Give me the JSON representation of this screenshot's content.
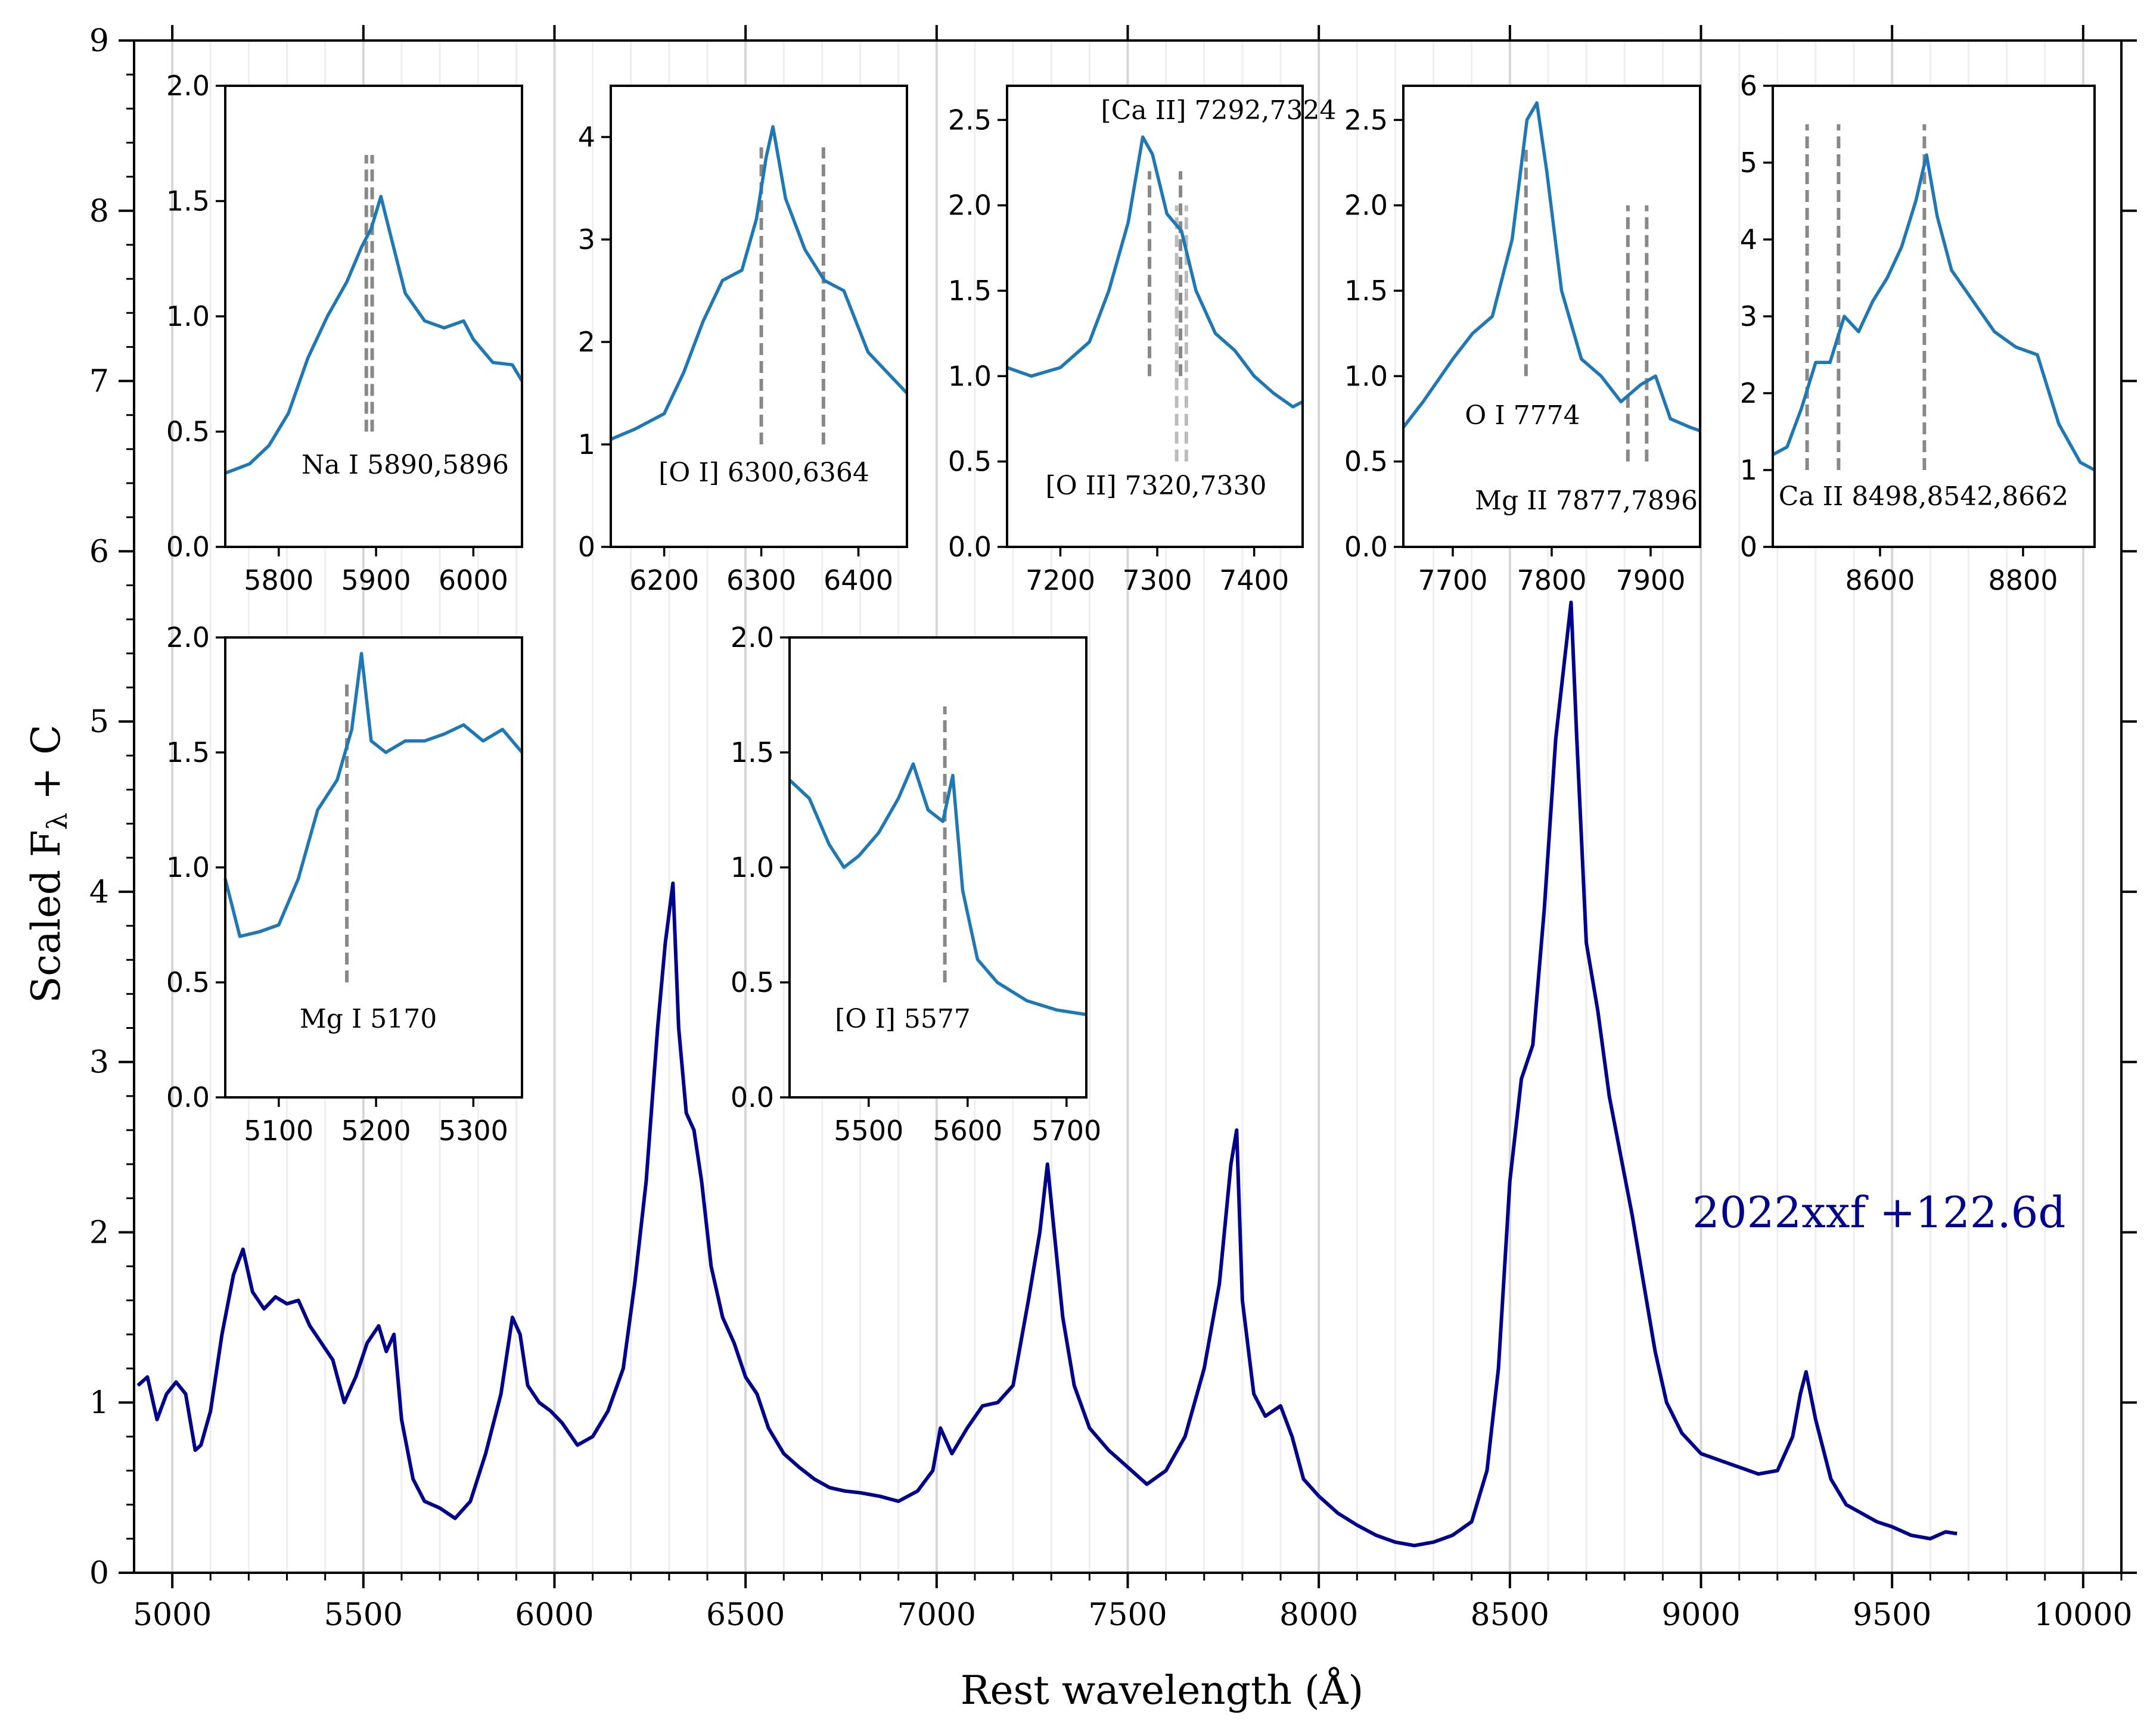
{
  "chart_data": [
    {
      "type": "line",
      "id": "main",
      "xlabel": "Rest wavelength (Å)",
      "ylabel_prefix": "Scaled F",
      "ylabel_sub": "λ",
      "ylabel_suffix": " + C",
      "xlim": [
        4900,
        10100
      ],
      "ylim": [
        0,
        9
      ],
      "xticks": [
        5000,
        5500,
        6000,
        6500,
        7000,
        7500,
        8000,
        8500,
        9000,
        9500,
        10000
      ],
      "yticks": [
        0,
        1,
        2,
        3,
        4,
        5,
        6,
        7,
        8,
        9
      ],
      "xtick_labels": [
        "5000",
        "5500",
        "6000",
        "6500",
        "7000",
        "7500",
        "8000",
        "8500",
        "9000",
        "9500",
        "10000"
      ],
      "ytick_labels": [
        "0",
        "1",
        "2",
        "3",
        "4",
        "5",
        "6",
        "7",
        "8",
        "9"
      ],
      "annotation": "2022xxf +122.6d",
      "series": [
        {
          "name": "2022xxf +122.6d",
          "color": "#00008b",
          "x": [
            4910,
            4935,
            4960,
            4985,
            5010,
            5035,
            5060,
            5075,
            5100,
            5130,
            5160,
            5185,
            5210,
            5240,
            5270,
            5300,
            5330,
            5360,
            5390,
            5420,
            5450,
            5480,
            5510,
            5540,
            5560,
            5580,
            5600,
            5630,
            5660,
            5700,
            5740,
            5780,
            5820,
            5860,
            5890,
            5910,
            5930,
            5960,
            5990,
            6020,
            6060,
            6100,
            6140,
            6180,
            6210,
            6240,
            6270,
            6290,
            6310,
            6325,
            6345,
            6365,
            6385,
            6410,
            6440,
            6470,
            6500,
            6530,
            6560,
            6600,
            6640,
            6680,
            6720,
            6760,
            6800,
            6850,
            6900,
            6950,
            6990,
            7010,
            7040,
            7080,
            7120,
            7160,
            7200,
            7240,
            7270,
            7290,
            7310,
            7330,
            7360,
            7400,
            7450,
            7500,
            7550,
            7600,
            7650,
            7700,
            7740,
            7770,
            7785,
            7800,
            7830,
            7860,
            7900,
            7930,
            7960,
            8000,
            8050,
            8100,
            8150,
            8200,
            8250,
            8300,
            8350,
            8400,
            8440,
            8470,
            8500,
            8530,
            8560,
            8590,
            8620,
            8645,
            8660,
            8675,
            8700,
            8730,
            8760,
            8790,
            8820,
            8850,
            8880,
            8910,
            8950,
            9000,
            9050,
            9100,
            9150,
            9200,
            9240,
            9260,
            9275,
            9300,
            9340,
            9380,
            9420,
            9460,
            9500,
            9550,
            9600,
            9640,
            9670
          ],
          "y": [
            1.1,
            1.15,
            0.9,
            1.05,
            1.12,
            1.05,
            0.72,
            0.75,
            0.95,
            1.4,
            1.75,
            1.9,
            1.65,
            1.55,
            1.62,
            1.58,
            1.6,
            1.45,
            1.35,
            1.25,
            1.0,
            1.15,
            1.35,
            1.45,
            1.3,
            1.4,
            0.9,
            0.55,
            0.42,
            0.38,
            0.32,
            0.42,
            0.7,
            1.05,
            1.5,
            1.4,
            1.1,
            1.0,
            0.95,
            0.88,
            0.75,
            0.8,
            0.95,
            1.2,
            1.7,
            2.3,
            3.2,
            3.7,
            4.05,
            3.2,
            2.7,
            2.6,
            2.3,
            1.8,
            1.5,
            1.35,
            1.15,
            1.05,
            0.85,
            0.7,
            0.62,
            0.55,
            0.5,
            0.48,
            0.47,
            0.45,
            0.42,
            0.48,
            0.6,
            0.85,
            0.7,
            0.85,
            0.98,
            1.0,
            1.1,
            1.6,
            2.0,
            2.4,
            1.95,
            1.5,
            1.1,
            0.85,
            0.72,
            0.62,
            0.52,
            0.6,
            0.8,
            1.2,
            1.7,
            2.4,
            2.6,
            1.6,
            1.05,
            0.92,
            0.98,
            0.8,
            0.55,
            0.45,
            0.35,
            0.28,
            0.22,
            0.18,
            0.16,
            0.18,
            0.22,
            0.3,
            0.6,
            1.2,
            2.3,
            2.9,
            3.1,
            3.9,
            4.9,
            5.4,
            5.7,
            4.9,
            3.7,
            3.3,
            2.8,
            2.45,
            2.1,
            1.7,
            1.3,
            1.0,
            0.82,
            0.7,
            0.66,
            0.62,
            0.58,
            0.6,
            0.8,
            1.05,
            1.18,
            0.9,
            0.55,
            0.4,
            0.35,
            0.3,
            0.27,
            0.22,
            0.2,
            0.24,
            0.23
          ]
        }
      ]
    },
    {
      "type": "line",
      "id": "inset-na",
      "xlim": [
        5745,
        6050
      ],
      "ylim": [
        0,
        2.0
      ],
      "xticks": [
        5800,
        5900,
        6000
      ],
      "xtick_labels": [
        "5800",
        "5900",
        "6000"
      ],
      "yticks": [
        0,
        0.5,
        1.0,
        1.5,
        2.0
      ],
      "ytick_labels": [
        "0.0",
        "0.5",
        "1.0",
        "1.5",
        "2.0"
      ],
      "label": "Na I 5890,5896",
      "lines": [
        {
          "x": 5890,
          "y0": 0.5,
          "y1": 1.7,
          "color": "#888888"
        },
        {
          "x": 5896,
          "y0": 0.5,
          "y1": 1.7,
          "color": "#888888"
        }
      ],
      "series": [
        {
          "name": "flux",
          "color": "#1f77b4",
          "x": [
            5745,
            5770,
            5790,
            5810,
            5830,
            5850,
            5870,
            5885,
            5895,
            5905,
            5915,
            5930,
            5950,
            5970,
            5990,
            6000,
            6020,
            6040,
            6050
          ],
          "y": [
            0.32,
            0.36,
            0.44,
            0.58,
            0.82,
            1.0,
            1.15,
            1.3,
            1.38,
            1.52,
            1.35,
            1.1,
            0.98,
            0.95,
            0.98,
            0.9,
            0.8,
            0.79,
            0.72
          ]
        }
      ]
    },
    {
      "type": "line",
      "id": "inset-oi-6300",
      "xlim": [
        6145,
        6450
      ],
      "ylim": [
        0,
        4.5
      ],
      "xticks": [
        6200,
        6300,
        6400
      ],
      "xtick_labels": [
        "6200",
        "6300",
        "6400"
      ],
      "yticks": [
        0,
        1,
        2,
        3,
        4
      ],
      "ytick_labels": [
        "0",
        "1",
        "2",
        "3",
        "4"
      ],
      "label": "[O I] 6300,6364",
      "lines": [
        {
          "x": 6300,
          "y0": 1.0,
          "y1": 3.9,
          "color": "#888888"
        },
        {
          "x": 6364,
          "y0": 1.0,
          "y1": 3.9,
          "color": "#888888"
        }
      ],
      "series": [
        {
          "name": "flux",
          "color": "#1f77b4",
          "x": [
            6145,
            6170,
            6200,
            6220,
            6240,
            6260,
            6280,
            6295,
            6305,
            6312,
            6325,
            6345,
            6365,
            6385,
            6410,
            6430,
            6450
          ],
          "y": [
            1.05,
            1.15,
            1.3,
            1.7,
            2.2,
            2.6,
            2.7,
            3.2,
            3.8,
            4.1,
            3.4,
            2.9,
            2.6,
            2.5,
            1.9,
            1.7,
            1.5
          ]
        }
      ]
    },
    {
      "type": "line",
      "id": "inset-caii",
      "xlim": [
        7145,
        7450
      ],
      "ylim": [
        0,
        2.7
      ],
      "xticks": [
        7200,
        7300,
        7400
      ],
      "xtick_labels": [
        "7200",
        "7300",
        "7400"
      ],
      "yticks": [
        0,
        0.5,
        1.0,
        1.5,
        2.0,
        2.5
      ],
      "ytick_labels": [
        "0.0",
        "0.5",
        "1.0",
        "1.5",
        "2.0",
        "2.5"
      ],
      "label": "[Ca II] 7292,7324",
      "label2": "[O II] 7320,7330",
      "lines": [
        {
          "x": 7292,
          "y0": 1.0,
          "y1": 2.2,
          "color": "#888888"
        },
        {
          "x": 7324,
          "y0": 1.0,
          "y1": 2.2,
          "color": "#888888"
        },
        {
          "x": 7320,
          "y0": 0.5,
          "y1": 2.0,
          "color": "#bbbbbb"
        },
        {
          "x": 7330,
          "y0": 0.5,
          "y1": 2.0,
          "color": "#bbbbbb"
        }
      ],
      "series": [
        {
          "name": "flux",
          "color": "#1f77b4",
          "x": [
            7145,
            7170,
            7200,
            7230,
            7250,
            7270,
            7285,
            7295,
            7310,
            7325,
            7340,
            7360,
            7380,
            7400,
            7420,
            7440,
            7450
          ],
          "y": [
            1.05,
            1.0,
            1.05,
            1.2,
            1.5,
            1.9,
            2.4,
            2.3,
            1.95,
            1.85,
            1.5,
            1.25,
            1.15,
            1.0,
            0.9,
            0.82,
            0.85
          ]
        }
      ]
    },
    {
      "type": "line",
      "id": "inset-oi-7774",
      "xlim": [
        7650,
        7950
      ],
      "ylim": [
        0,
        2.7
      ],
      "xticks": [
        7700,
        7800,
        7900
      ],
      "xtick_labels": [
        "7700",
        "7800",
        "7900"
      ],
      "yticks": [
        0,
        0.5,
        1.0,
        1.5,
        2.0,
        2.5
      ],
      "ytick_labels": [
        "0.0",
        "0.5",
        "1.0",
        "1.5",
        "2.0",
        "2.5"
      ],
      "label": "O I 7774",
      "label2": "Mg II 7877,7896",
      "lines": [
        {
          "x": 7774,
          "y0": 1.0,
          "y1": 2.35,
          "color": "#888888"
        },
        {
          "x": 7877,
          "y0": 0.5,
          "y1": 2.0,
          "color": "#888888"
        },
        {
          "x": 7896,
          "y0": 0.5,
          "y1": 2.0,
          "color": "#888888"
        }
      ],
      "series": [
        {
          "name": "flux",
          "color": "#1f77b4",
          "x": [
            7650,
            7670,
            7700,
            7720,
            7740,
            7760,
            7775,
            7785,
            7795,
            7810,
            7830,
            7850,
            7870,
            7890,
            7905,
            7920,
            7940,
            7950
          ],
          "y": [
            0.7,
            0.85,
            1.1,
            1.25,
            1.35,
            1.8,
            2.5,
            2.6,
            2.2,
            1.5,
            1.1,
            1.0,
            0.85,
            0.95,
            1.0,
            0.75,
            0.7,
            0.68
          ]
        }
      ]
    },
    {
      "type": "line",
      "id": "inset-caii-ir",
      "xlim": [
        8450,
        8900
      ],
      "ylim": [
        0,
        6
      ],
      "xticks": [
        8600,
        8800
      ],
      "xtick_labels": [
        "8600",
        "8800"
      ],
      "yticks": [
        0,
        1,
        2,
        3,
        4,
        5,
        6
      ],
      "ytick_labels": [
        "0",
        "1",
        "2",
        "3",
        "4",
        "5",
        "6"
      ],
      "label": "Ca II 8498,8542,8662",
      "lines": [
        {
          "x": 8498,
          "y0": 1.0,
          "y1": 5.5,
          "color": "#888888"
        },
        {
          "x": 8542,
          "y0": 1.0,
          "y1": 5.5,
          "color": "#888888"
        },
        {
          "x": 8662,
          "y0": 1.0,
          "y1": 5.5,
          "color": "#888888"
        }
      ],
      "series": [
        {
          "name": "flux",
          "color": "#1f77b4",
          "x": [
            8450,
            8470,
            8490,
            8510,
            8530,
            8550,
            8570,
            8590,
            8610,
            8630,
            8650,
            8665,
            8680,
            8700,
            8730,
            8760,
            8790,
            8820,
            8850,
            8880,
            8900
          ],
          "y": [
            1.2,
            1.3,
            1.8,
            2.4,
            2.4,
            3.0,
            2.8,
            3.2,
            3.5,
            3.9,
            4.5,
            5.1,
            4.3,
            3.6,
            3.2,
            2.8,
            2.6,
            2.5,
            1.6,
            1.1,
            1.0
          ]
        }
      ]
    },
    {
      "type": "line",
      "id": "inset-mgi",
      "xlim": [
        5045,
        5350
      ],
      "ylim": [
        0,
        2.0
      ],
      "xticks": [
        5100,
        5200,
        5300
      ],
      "xtick_labels": [
        "5100",
        "5200",
        "5300"
      ],
      "yticks": [
        0,
        0.5,
        1.0,
        1.5,
        2.0
      ],
      "ytick_labels": [
        "0.0",
        "0.5",
        "1.0",
        "1.5",
        "2.0"
      ],
      "label": "Mg I 5170",
      "lines": [
        {
          "x": 5170,
          "y0": 0.5,
          "y1": 1.8,
          "color": "#888888"
        }
      ],
      "series": [
        {
          "name": "flux",
          "color": "#1f77b4",
          "x": [
            5045,
            5060,
            5080,
            5100,
            5120,
            5140,
            5160,
            5175,
            5185,
            5195,
            5210,
            5230,
            5250,
            5270,
            5290,
            5310,
            5330,
            5350
          ],
          "y": [
            0.95,
            0.7,
            0.72,
            0.75,
            0.95,
            1.25,
            1.38,
            1.6,
            1.93,
            1.55,
            1.5,
            1.55,
            1.55,
            1.58,
            1.62,
            1.55,
            1.6,
            1.5
          ]
        }
      ]
    },
    {
      "type": "line",
      "id": "inset-oi-5577",
      "xlim": [
        5420,
        5720
      ],
      "ylim": [
        0,
        2.0
      ],
      "xticks": [
        5500,
        5600,
        5700
      ],
      "xtick_labels": [
        "5500",
        "5600",
        "5700"
      ],
      "yticks": [
        0,
        0.5,
        1.0,
        1.5,
        2.0
      ],
      "ytick_labels": [
        "0.0",
        "0.5",
        "1.0",
        "1.5",
        "2.0"
      ],
      "label": "[O I] 5577",
      "lines": [
        {
          "x": 5577,
          "y0": 0.5,
          "y1": 1.7,
          "color": "#888888"
        }
      ],
      "series": [
        {
          "name": "flux",
          "color": "#1f77b4",
          "x": [
            5420,
            5440,
            5460,
            5475,
            5490,
            5510,
            5530,
            5545,
            5560,
            5575,
            5585,
            5595,
            5610,
            5630,
            5660,
            5690,
            5720
          ],
          "y": [
            1.38,
            1.3,
            1.1,
            1.0,
            1.05,
            1.15,
            1.3,
            1.45,
            1.25,
            1.2,
            1.4,
            0.9,
            0.6,
            0.5,
            0.42,
            0.38,
            0.36
          ]
        }
      ]
    }
  ]
}
